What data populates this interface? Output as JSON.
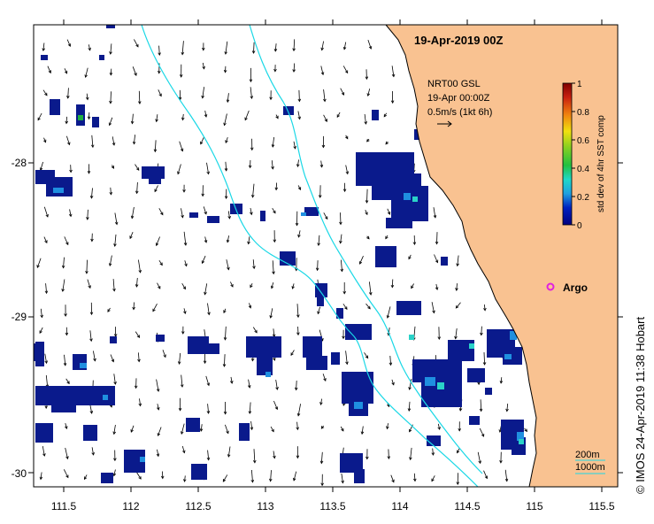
{
  "map": {
    "title": "19-Apr-2019 00Z",
    "legend": {
      "line1": "NRT00 GSL",
      "line2": "19-Apr 00:00Z",
      "line3": "0.5m/s (1kt 6h)"
    },
    "argo_label": "Argo",
    "credit": "© IMOS 24-Apr-2019 11:38 Hobart",
    "bathymetry_labels": [
      "200m",
      "1000m"
    ],
    "x_ticks": [
      "111.5",
      "112",
      "112.5",
      "113",
      "113.5",
      "114",
      "114.5",
      "115",
      "115.5"
    ],
    "y_ticks": [
      "-28",
      "-29",
      "-30"
    ],
    "colorbar": {
      "label": "std dev of 4hr SST comp",
      "ticks": [
        "1",
        "0.8",
        "0.6",
        "0.4",
        "0.2",
        "0"
      ]
    },
    "colors": {
      "land": "#f9c291",
      "contour": "#1ad8e6",
      "argo": "#e020e0",
      "data_dark": "#0a1a8c"
    }
  }
}
